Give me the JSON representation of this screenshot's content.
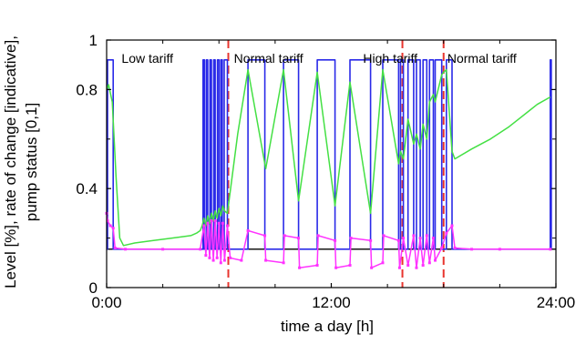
{
  "chart_data": {
    "type": "line",
    "title": "",
    "xlabel": "time a day [h]",
    "ylabel_lines": [
      "Level [%], rate of change [indicative],",
      "pump status [0,1]"
    ],
    "xlim": [
      0,
      24
    ],
    "ylim": [
      0,
      1
    ],
    "x_ticks": [
      {
        "value": 0,
        "label": "0:00"
      },
      {
        "value": 12,
        "label": "12:00"
      },
      {
        "value": 24,
        "label": "24:00"
      }
    ],
    "x_minor_ticks": [
      3,
      6,
      9,
      15,
      18,
      21
    ],
    "y_ticks": [
      {
        "value": 0,
        "label": "0"
      },
      {
        "value": 0.4,
        "label": "0.4"
      },
      {
        "value": 0.8,
        "label": "0.8"
      },
      {
        "value": 1,
        "label": "1"
      }
    ],
    "y_minor_ticks": [
      0.2,
      0.6
    ],
    "baseline": 0.155,
    "tariff_boundaries": [
      6.5,
      15.8,
      18.0
    ],
    "tariff_labels": [
      {
        "text": "Low tariff",
        "x": 0.8
      },
      {
        "text": "Normal tariff",
        "x": 6.8
      },
      {
        "text": "High tariff",
        "x": 13.7
      },
      {
        "text": "Normal tariff",
        "x": 18.2
      }
    ],
    "colors": {
      "pump": "#2a2ae8",
      "level": "#44e044",
      "rate": "#ff33ff",
      "tariff": "#e8352e",
      "baseline": "#000000",
      "axis": "#000000"
    },
    "series": [
      {
        "key": "pump",
        "style": "step",
        "high": 0.92,
        "low": 0.155,
        "on_intervals": [
          [
            0.05,
            0.35
          ],
          [
            5.15,
            5.23
          ],
          [
            5.33,
            5.4
          ],
          [
            5.52,
            5.6
          ],
          [
            5.72,
            5.8
          ],
          [
            5.92,
            6.0
          ],
          [
            6.1,
            6.18
          ],
          [
            6.28,
            6.45
          ],
          [
            7.55,
            8.45
          ],
          [
            9.45,
            10.25
          ],
          [
            11.25,
            12.2
          ],
          [
            13.0,
            14.1
          ],
          [
            14.75,
            15.6
          ],
          [
            15.7,
            15.85
          ],
          [
            16.1,
            16.4
          ],
          [
            16.55,
            16.75
          ],
          [
            16.9,
            17.1
          ],
          [
            17.25,
            17.45
          ],
          [
            17.55,
            17.9
          ],
          [
            18.15,
            18.45
          ],
          [
            23.7,
            23.75
          ]
        ]
      },
      {
        "key": "level",
        "style": "line",
        "points": [
          [
            0,
            0.8
          ],
          [
            0.1,
            0.82
          ],
          [
            0.3,
            0.75
          ],
          [
            0.5,
            0.45
          ],
          [
            0.7,
            0.2
          ],
          [
            0.9,
            0.17
          ],
          [
            1.5,
            0.18
          ],
          [
            2.5,
            0.19
          ],
          [
            3.5,
            0.2
          ],
          [
            4.5,
            0.21
          ],
          [
            4.8,
            0.22
          ],
          [
            5.0,
            0.23
          ],
          [
            5.1,
            0.25
          ],
          [
            5.2,
            0.28
          ],
          [
            5.3,
            0.25
          ],
          [
            5.4,
            0.29
          ],
          [
            5.5,
            0.26
          ],
          [
            5.6,
            0.3
          ],
          [
            5.7,
            0.27
          ],
          [
            5.8,
            0.31
          ],
          [
            5.9,
            0.28
          ],
          [
            6.0,
            0.32
          ],
          [
            6.1,
            0.29
          ],
          [
            6.2,
            0.33
          ],
          [
            6.3,
            0.31
          ],
          [
            6.45,
            0.3
          ],
          [
            7.0,
            0.62
          ],
          [
            7.55,
            0.88
          ],
          [
            8.45,
            0.5
          ],
          [
            8.5,
            0.48
          ],
          [
            9.45,
            0.88
          ],
          [
            10.25,
            0.35
          ],
          [
            11.25,
            0.87
          ],
          [
            12.2,
            0.33
          ],
          [
            13.0,
            0.83
          ],
          [
            14.1,
            0.3
          ],
          [
            14.75,
            0.88
          ],
          [
            15.6,
            0.5
          ],
          [
            15.7,
            0.55
          ],
          [
            15.85,
            0.52
          ],
          [
            16.1,
            0.68
          ],
          [
            16.4,
            0.58
          ],
          [
            16.55,
            0.62
          ],
          [
            16.75,
            0.56
          ],
          [
            16.9,
            0.66
          ],
          [
            17.1,
            0.6
          ],
          [
            17.25,
            0.75
          ],
          [
            17.45,
            0.78
          ],
          [
            17.55,
            0.75
          ],
          [
            17.9,
            0.86
          ],
          [
            18.0,
            0.87
          ],
          [
            18.15,
            0.88
          ],
          [
            18.45,
            0.55
          ],
          [
            18.6,
            0.52
          ],
          [
            19.5,
            0.56
          ],
          [
            20.5,
            0.6
          ],
          [
            21.5,
            0.65
          ],
          [
            22.5,
            0.71
          ],
          [
            23.0,
            0.74
          ],
          [
            23.7,
            0.77
          ]
        ]
      },
      {
        "key": "rate",
        "style": "line",
        "points": [
          [
            0,
            0.3
          ],
          [
            0.05,
            0.27
          ],
          [
            0.2,
            0.25
          ],
          [
            0.35,
            0.24
          ],
          [
            0.45,
            0.16
          ],
          [
            1.0,
            0.155
          ],
          [
            3.0,
            0.155
          ],
          [
            5.0,
            0.155
          ],
          [
            5.2,
            0.25
          ],
          [
            5.3,
            0.13
          ],
          [
            5.4,
            0.26
          ],
          [
            5.5,
            0.12
          ],
          [
            5.6,
            0.27
          ],
          [
            5.7,
            0.11
          ],
          [
            5.8,
            0.27
          ],
          [
            5.9,
            0.12
          ],
          [
            6.0,
            0.26
          ],
          [
            6.1,
            0.1
          ],
          [
            6.2,
            0.26
          ],
          [
            6.3,
            0.11
          ],
          [
            6.45,
            0.25
          ],
          [
            6.6,
            0.12
          ],
          [
            7.2,
            0.11
          ],
          [
            7.55,
            0.23
          ],
          [
            8.45,
            0.21
          ],
          [
            8.5,
            0.11
          ],
          [
            9.45,
            0.1
          ],
          [
            9.5,
            0.21
          ],
          [
            10.25,
            0.2
          ],
          [
            10.3,
            0.08
          ],
          [
            11.25,
            0.09
          ],
          [
            11.3,
            0.21
          ],
          [
            12.2,
            0.19
          ],
          [
            12.25,
            0.08
          ],
          [
            13.0,
            0.09
          ],
          [
            13.05,
            0.2
          ],
          [
            14.1,
            0.19
          ],
          [
            14.15,
            0.08
          ],
          [
            14.75,
            0.1
          ],
          [
            14.8,
            0.21
          ],
          [
            15.6,
            0.19
          ],
          [
            15.65,
            0.08
          ],
          [
            15.85,
            0.2
          ],
          [
            16.1,
            0.09
          ],
          [
            16.4,
            0.21
          ],
          [
            16.55,
            0.08
          ],
          [
            16.75,
            0.2
          ],
          [
            16.9,
            0.09
          ],
          [
            17.1,
            0.21
          ],
          [
            17.25,
            0.1
          ],
          [
            17.45,
            0.2
          ],
          [
            17.55,
            0.11
          ],
          [
            17.9,
            0.16
          ],
          [
            18.15,
            0.22
          ],
          [
            18.45,
            0.25
          ],
          [
            18.6,
            0.16
          ],
          [
            19.5,
            0.155
          ],
          [
            21.0,
            0.155
          ],
          [
            23.7,
            0.155
          ]
        ]
      }
    ]
  }
}
